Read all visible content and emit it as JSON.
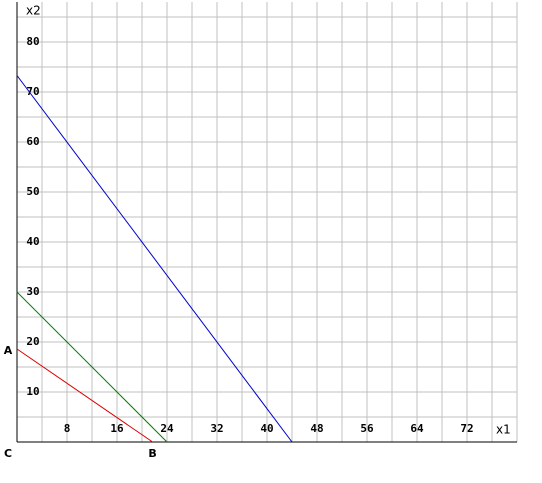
{
  "chart_data": {
    "type": "line",
    "x_label": "x1",
    "y_label": "x2",
    "xlim": [
      0,
      80
    ],
    "ylim": [
      0,
      88
    ],
    "xticks": [
      8,
      16,
      24,
      32,
      40,
      48,
      56,
      64,
      72
    ],
    "yticks": [
      10,
      20,
      30,
      40,
      50,
      60,
      70,
      80
    ],
    "xgrid": [
      4,
      8,
      12,
      16,
      20,
      24,
      28,
      32,
      36,
      40,
      44,
      48,
      52,
      56,
      60,
      64,
      68,
      72,
      76,
      80
    ],
    "ygrid": [
      5,
      10,
      15,
      20,
      25,
      30,
      35,
      40,
      45,
      50,
      55,
      60,
      65,
      70,
      75,
      80,
      85
    ],
    "grid": true,
    "series": [
      {
        "color": "#0000cc",
        "x": [
          0,
          44
        ],
        "values": [
          73.3,
          0
        ]
      },
      {
        "color": "#008000",
        "x": [
          0,
          24
        ],
        "values": [
          30,
          0
        ]
      },
      {
        "color": "#dd0000",
        "x": [
          0,
          21.7
        ],
        "values": [
          18.6,
          0
        ]
      }
    ],
    "annotations": [
      {
        "text": "A",
        "x": 0,
        "y": 18.6
      },
      {
        "text": "B",
        "x": 21.7,
        "y": 0
      },
      {
        "text": "C",
        "x": 0,
        "y": 0
      }
    ]
  }
}
